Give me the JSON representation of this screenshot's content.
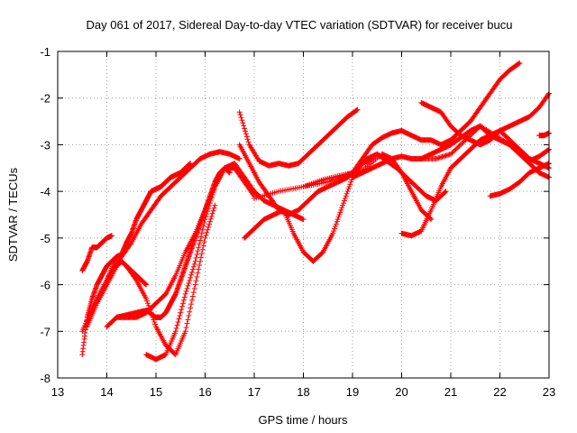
{
  "chart_data": {
    "type": "scatter",
    "title": "Day 061 of 2017, Sidereal Day-to-day VTEC variation (SDTVAR) for receiver bucu",
    "xlabel": "GPS time / hours",
    "ylabel": "SDTVAR / TECUs",
    "xlim": [
      13,
      23
    ],
    "ylim": [
      -8,
      -1
    ],
    "xticks": [
      13,
      14,
      15,
      16,
      17,
      18,
      19,
      20,
      21,
      22,
      23
    ],
    "yticks": [
      -8,
      -7,
      -6,
      -5,
      -4,
      -3,
      -2,
      -1
    ],
    "grid": true,
    "legend": "none",
    "marker": "+",
    "color": "#ff0000",
    "series": [
      {
        "x": [
          13.5,
          13.6,
          13.7,
          13.8,
          13.9,
          14.0,
          14.1,
          14.2,
          14.3,
          14.4,
          14.5,
          14.6,
          14.7,
          14.8,
          14.9,
          15.0,
          15.1,
          15.2,
          15.3,
          15.4,
          15.5,
          15.6,
          15.7
        ],
        "y": [
          -7.5,
          -6.7,
          -6.3,
          -6.0,
          -5.8,
          -5.6,
          -5.5,
          -5.4,
          -5.35,
          -5.1,
          -4.9,
          -4.6,
          -4.4,
          -4.2,
          -4.0,
          -3.95,
          -3.9,
          -3.8,
          -3.7,
          -3.65,
          -3.6,
          -3.5,
          -3.4
        ]
      },
      {
        "x": [
          13.5,
          13.6,
          13.7,
          13.8,
          13.9,
          14.0,
          14.1
        ],
        "y": [
          -5.7,
          -5.5,
          -5.2,
          -5.2,
          -5.1,
          -5.0,
          -4.95
        ]
      },
      {
        "x": [
          13.5,
          13.7,
          13.9,
          14.1,
          14.3,
          14.5,
          14.7,
          14.9,
          15.1,
          15.3,
          15.5,
          15.7,
          15.9,
          16.1,
          16.3,
          16.5,
          16.7
        ],
        "y": [
          -7.0,
          -6.5,
          -6.1,
          -5.7,
          -5.4,
          -5.1,
          -4.7,
          -4.4,
          -4.1,
          -3.9,
          -3.7,
          -3.5,
          -3.3,
          -3.2,
          -3.15,
          -3.2,
          -3.3
        ]
      },
      {
        "x": [
          13.6,
          13.8,
          14.0,
          14.2,
          14.3,
          14.4,
          14.5,
          14.6,
          14.7,
          14.8
        ],
        "y": [
          -6.9,
          -6.4,
          -6.0,
          -5.6,
          -5.5,
          -5.6,
          -5.7,
          -5.8,
          -5.9,
          -6.0
        ]
      },
      {
        "x": [
          14.0,
          14.2,
          14.4,
          14.6,
          14.8,
          15.0,
          15.2,
          15.4,
          15.6,
          15.8,
          16.0,
          16.2,
          16.4,
          16.6,
          16.8,
          17.0
        ],
        "y": [
          -6.9,
          -6.7,
          -6.7,
          -6.7,
          -6.6,
          -6.4,
          -6.2,
          -5.8,
          -5.3,
          -4.9,
          -4.4,
          -3.9,
          -3.5,
          -3.5,
          -3.8,
          -4.1
        ]
      },
      {
        "x": [
          14.2,
          14.4,
          14.6,
          14.8,
          15.0,
          15.1,
          15.2,
          15.3,
          15.4,
          15.5,
          15.6,
          15.7,
          15.8,
          15.9,
          16.0,
          16.1,
          16.2,
          16.3,
          16.4,
          16.5
        ],
        "y": [
          -6.7,
          -6.65,
          -6.6,
          -6.55,
          -6.7,
          -6.7,
          -6.6,
          -6.4,
          -6.2,
          -5.9,
          -5.6,
          -5.3,
          -5.0,
          -4.7,
          -4.4,
          -4.1,
          -3.8,
          -3.6,
          -3.5,
          -3.6
        ]
      },
      {
        "x": [
          14.0,
          14.2,
          14.4,
          14.6,
          14.8,
          15.0,
          15.2,
          15.4,
          15.6,
          15.8,
          16.0,
          16.2
        ],
        "y": [
          -5.9,
          -5.4,
          -5.6,
          -5.9,
          -6.3,
          -6.9,
          -7.3,
          -7.5,
          -7.0,
          -6.0,
          -5.0,
          -4.3
        ]
      },
      {
        "x": [
          14.8,
          15.0,
          15.2,
          15.4,
          15.6,
          15.8,
          16.0,
          16.2,
          16.4,
          16.6,
          16.8,
          17.0,
          17.2,
          17.4,
          17.6,
          17.8,
          18.0
        ],
        "y": [
          -7.5,
          -7.6,
          -7.5,
          -7.0,
          -6.2,
          -5.5,
          -4.6,
          -3.9,
          -3.5,
          -3.4,
          -3.7,
          -4.0,
          -4.2,
          -4.3,
          -4.4,
          -4.5,
          -4.6
        ]
      },
      {
        "x": [
          16.7,
          16.9,
          17.1,
          17.3,
          17.5,
          17.7,
          17.9,
          18.1,
          18.3,
          18.5,
          18.7,
          18.9,
          19.1
        ],
        "y": [
          -2.3,
          -3.0,
          -3.35,
          -3.45,
          -3.4,
          -3.45,
          -3.4,
          -3.2,
          -3.0,
          -2.8,
          -2.6,
          -2.4,
          -2.25
        ]
      },
      {
        "x": [
          16.7,
          16.9,
          17.1,
          17.3,
          17.5,
          17.7,
          17.9,
          18.1,
          18.3,
          18.5,
          18.7,
          18.9,
          19.1,
          19.3,
          19.5,
          19.7,
          19.9,
          20.1,
          20.3,
          20.5,
          20.7,
          20.9
        ],
        "y": [
          -3.0,
          -3.4,
          -3.8,
          -4.1,
          -4.4,
          -4.5,
          -4.4,
          -4.2,
          -4.0,
          -3.9,
          -3.8,
          -3.7,
          -3.5,
          -3.3,
          -3.2,
          -3.35,
          -3.5,
          -3.7,
          -3.9,
          -4.1,
          -4.2,
          -4.0
        ]
      },
      {
        "x": [
          16.8,
          17.0,
          17.2,
          17.4,
          17.6,
          17.8,
          18.0,
          18.2,
          18.4,
          18.6,
          18.8,
          19.0,
          19.2,
          19.4
        ],
        "y": [
          -5.0,
          -4.8,
          -4.6,
          -4.5,
          -4.4,
          -4.9,
          -5.3,
          -5.5,
          -5.3,
          -4.9,
          -4.3,
          -3.7,
          -3.4,
          -3.3
        ]
      },
      {
        "x": [
          17.0,
          17.5,
          18.0,
          18.5,
          19.0,
          19.2,
          19.4,
          19.6,
          19.8,
          20.0,
          20.2,
          20.4,
          20.6,
          20.8,
          21.0,
          21.2,
          21.4,
          21.6,
          21.8,
          22.0,
          22.2,
          22.4
        ],
        "y": [
          -4.15,
          -4.0,
          -3.9,
          -3.8,
          -3.6,
          -3.3,
          -3.0,
          -2.85,
          -2.75,
          -2.7,
          -2.8,
          -2.9,
          -2.9,
          -3.0,
          -2.9,
          -2.7,
          -2.5,
          -2.2,
          -1.9,
          -1.6,
          -1.4,
          -1.25
        ]
      },
      {
        "x": [
          18.0,
          18.4,
          18.8,
          19.2,
          19.6,
          19.8,
          20.0,
          20.2,
          20.4,
          20.6
        ],
        "y": [
          -3.9,
          -3.75,
          -3.65,
          -3.55,
          -3.2,
          -3.3,
          -3.6,
          -4.0,
          -4.4,
          -4.6
        ]
      },
      {
        "x": [
          19.0,
          19.2,
          19.4,
          19.6,
          19.8,
          20.0,
          20.2,
          20.4,
          20.6,
          20.8,
          21.0,
          21.2,
          21.4,
          21.6,
          21.8,
          22.0,
          22.2,
          22.4,
          22.6,
          22.8,
          23.0
        ],
        "y": [
          -3.7,
          -3.6,
          -3.5,
          -3.4,
          -3.3,
          -3.25,
          -3.3,
          -3.3,
          -3.2,
          -3.1,
          -3.0,
          -2.85,
          -2.7,
          -2.6,
          -2.8,
          -2.9,
          -3.0,
          -3.2,
          -3.4,
          -3.6,
          -3.7
        ]
      },
      {
        "x": [
          20.0,
          20.2,
          20.4,
          20.6,
          20.8,
          21.0,
          21.2,
          21.4,
          21.6,
          21.8,
          22.0,
          22.2,
          22.4,
          22.6,
          22.8,
          23.0
        ],
        "y": [
          -4.9,
          -4.95,
          -4.85,
          -4.4,
          -3.9,
          -3.5,
          -3.3,
          -3.1,
          -2.9,
          -2.8,
          -2.7,
          -2.6,
          -2.5,
          -2.4,
          -2.2,
          -1.9
        ]
      },
      {
        "x": [
          20.4,
          20.6,
          20.8,
          21.0,
          21.2,
          21.4,
          21.6,
          21.8,
          22.0,
          22.2,
          22.4,
          22.6,
          22.8,
          23.0
        ],
        "y": [
          -2.1,
          -2.2,
          -2.3,
          -2.6,
          -2.8,
          -2.9,
          -3.0,
          -2.9,
          -2.7,
          -2.9,
          -3.1,
          -3.3,
          -3.4,
          -3.5
        ]
      },
      {
        "x": [
          20.4,
          20.7,
          21.0,
          21.3,
          21.6,
          21.9,
          22.2,
          22.4,
          22.6,
          22.8,
          23.0
        ],
        "y": [
          -3.3,
          -3.3,
          -3.2,
          -2.9,
          -2.6,
          -2.8,
          -3.0,
          -3.2,
          -3.35,
          -3.25,
          -3.1
        ]
      },
      {
        "x": [
          21.8,
          22.0,
          22.2,
          22.4,
          22.6,
          22.8,
          23.0
        ],
        "y": [
          -4.1,
          -4.05,
          -3.95,
          -3.8,
          -3.6,
          -3.5,
          -3.4
        ]
      },
      {
        "x": [
          22.8,
          22.9,
          23.0
        ],
        "y": [
          -2.8,
          -2.8,
          -2.75
        ]
      }
    ]
  }
}
